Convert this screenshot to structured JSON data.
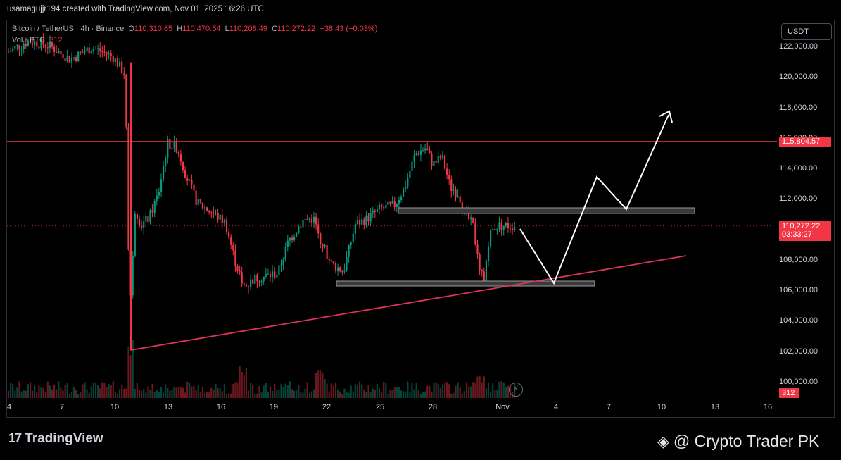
{
  "header": {
    "attribution": "usamagujjr194 created with TradingView.com, Nov 01, 2025 16:26 UTC"
  },
  "legend": {
    "symbol": "Bitcoin / TetherUS",
    "interval": "4h",
    "exchange": "Binance",
    "open_label": "O",
    "open": "110,310.65",
    "high_label": "H",
    "high": "110,470.54",
    "low_label": "L",
    "low": "110,208.49",
    "close_label": "C",
    "close": "110,272.22",
    "change": "−38.43 (−0.03%)",
    "volume_label": "Vol · BTC",
    "volume": "312"
  },
  "currency_button": "USDT",
  "price_axis": [
    "122,000.00",
    "120,000.00",
    "118,000.00",
    "116,000.00",
    "114,000.00",
    "112,000.00",
    "110,000.00",
    "108,000.00",
    "106,000.00",
    "104,000.00",
    "102,000.00",
    "100,000.00"
  ],
  "tags": {
    "resistance": "115,804.57",
    "last_price": "110,272.22",
    "countdown": "03:33:27",
    "volume": "312"
  },
  "time_axis": [
    "4",
    "7",
    "10",
    "13",
    "16",
    "19",
    "22",
    "25",
    "28",
    "Nov",
    "4",
    "7",
    "10",
    "13",
    "16"
  ],
  "footer": {
    "logo_mark": "17",
    "logo_text": "TradingView",
    "brand": "@ Crypto Trader PK"
  },
  "colors": {
    "up": "#089981",
    "down": "#f23645",
    "resistance_line": "#f23645",
    "trendline": "#e0345a",
    "zone_fill": "#3a3a3a",
    "projection": "#ffffff"
  },
  "chart_data": {
    "type": "candlestick",
    "series": "BTCUSDT 4h",
    "y_range": [
      99500,
      123000
    ],
    "resistance_level": 115804.57,
    "last_price": 110272.22,
    "supply_zone": [
      111100,
      111400
    ],
    "demand_zone": [
      106450,
      106650
    ],
    "trendline": [
      [
        "Oct 10",
        102100
      ],
      [
        "Nov 11",
        108400
      ]
    ],
    "projected_path": [
      [
        110000,
        "Nov 1"
      ],
      [
        106600,
        "Nov 3"
      ],
      [
        113500,
        "Nov 6"
      ],
      [
        111300,
        "Nov 8"
      ],
      [
        117800,
        "Nov 10"
      ]
    ]
  }
}
